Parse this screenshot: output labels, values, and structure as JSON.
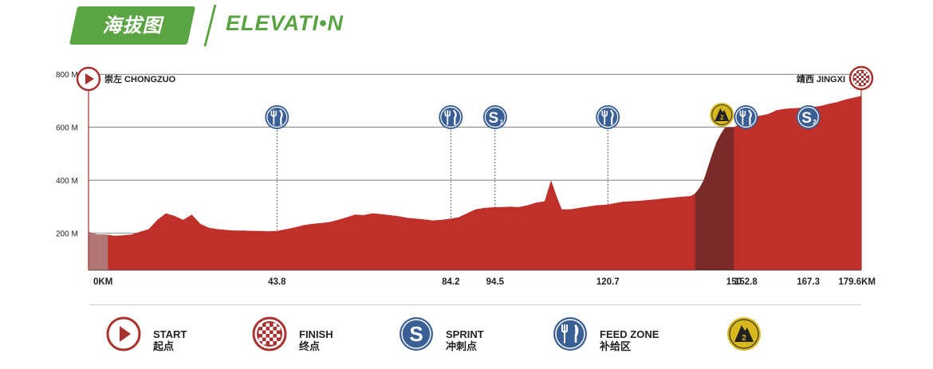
{
  "header": {
    "title_cn": "海拔图",
    "title_en": "ELEVATI•N"
  },
  "colors": {
    "brand_green": "#5aa444",
    "profile_red": "#c0302b",
    "climb_dark": "#7a2a28",
    "start_gray": "#b07676",
    "marker_blue": "#3a5f94",
    "marker_yellow": "#d9b81e",
    "start_red": "#a8322f"
  },
  "route": {
    "start_label": "崇左  CHONGZUO",
    "finish_label": "靖西  JINGXI"
  },
  "chart_data": {
    "type": "area",
    "xlabel": "",
    "ylabel": "",
    "xlim": [
      0,
      179.6
    ],
    "ylim": [
      60,
      900
    ],
    "ytick_labels": [
      "800 M",
      "600 M",
      "400 M",
      "200 M"
    ],
    "ytick_values": [
      800,
      600,
      400,
      200
    ],
    "xtick_labels": [
      "0KM",
      "43.8",
      "84.2",
      "94.5",
      "120.7",
      "150",
      "152.8",
      "167.3",
      "179.6KM"
    ],
    "xtick_values": [
      0,
      43.8,
      84.2,
      94.5,
      120.7,
      150,
      152.8,
      167.3,
      179.6
    ],
    "grid": true,
    "profile": {
      "x": [
        0,
        2,
        4,
        6,
        8,
        10,
        12,
        14,
        16,
        18,
        20,
        22,
        24,
        26,
        28,
        30,
        32,
        34,
        36,
        38,
        40,
        42,
        43.8,
        46,
        48,
        50,
        52,
        54,
        56,
        58,
        60,
        62,
        64,
        66,
        68,
        70,
        72,
        74,
        76,
        78,
        80,
        82,
        84.2,
        86,
        88,
        90,
        92,
        94.5,
        96,
        98,
        100,
        102,
        104,
        106,
        107.5,
        109,
        110,
        112,
        114,
        116,
        118,
        120.7,
        122,
        124,
        126,
        128,
        130,
        132,
        134,
        136,
        138,
        140,
        141,
        142,
        143,
        144,
        145,
        146,
        147,
        148,
        150,
        152.8,
        155,
        158,
        160,
        162,
        164,
        167.3,
        170,
        172,
        174,
        176,
        178,
        179.6
      ],
      "y": [
        205,
        195,
        195,
        190,
        192,
        195,
        205,
        215,
        250,
        275,
        265,
        250,
        270,
        235,
        220,
        215,
        212,
        210,
        210,
        208,
        208,
        207,
        208,
        215,
        222,
        230,
        235,
        238,
        242,
        250,
        260,
        270,
        268,
        275,
        272,
        268,
        264,
        258,
        255,
        252,
        248,
        250,
        255,
        260,
        275,
        290,
        295,
        298,
        298,
        300,
        298,
        305,
        315,
        320,
        400,
        330,
        290,
        290,
        295,
        300,
        305,
        308,
        312,
        318,
        320,
        322,
        325,
        328,
        332,
        335,
        338,
        340,
        350,
        370,
        400,
        450,
        500,
        545,
        575,
        600,
        600,
        625,
        640,
        650,
        665,
        670,
        672,
        675,
        680,
        688,
        695,
        705,
        712,
        718
      ]
    },
    "climb_shade": {
      "from": 141,
      "to": 150
    },
    "start_shade": {
      "from": 0,
      "to": 4.5
    }
  },
  "markers": [
    {
      "km": 43.8,
      "type": "feed",
      "label": ""
    },
    {
      "km": 84.2,
      "type": "feed",
      "label": ""
    },
    {
      "km": 94.5,
      "type": "sprint",
      "label": "1"
    },
    {
      "km": 120.7,
      "type": "feed",
      "label": ""
    },
    {
      "km": 150,
      "type": "kom",
      "label": "2"
    },
    {
      "km": 152.8,
      "type": "feed",
      "label": ""
    },
    {
      "km": 167.3,
      "type": "sprint",
      "label": "2"
    }
  ],
  "legend": {
    "start_en": "START",
    "start_cn": "起点",
    "finish_en": "FINISH",
    "finish_cn": "终点",
    "sprint_en": "SPRINT",
    "sprint_cn": "冲刺点",
    "feed_en": "FEED ZONE",
    "feed_cn": "补给区",
    "kom_label": "2"
  }
}
